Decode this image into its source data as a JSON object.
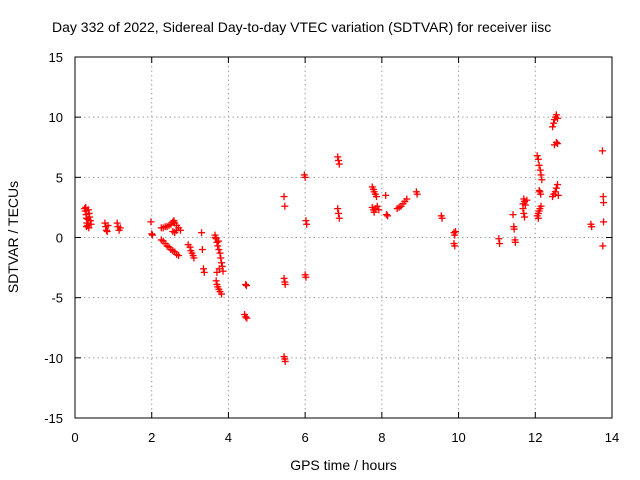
{
  "chart_data": {
    "type": "scatter",
    "title": "Day 332 of 2022, Sidereal Day-to-day VTEC variation (SDTVAR) for receiver iisc",
    "xlabel": "GPS time / hours",
    "ylabel": "SDTVAR / TECUs",
    "xlim": [
      0,
      14
    ],
    "ylim": [
      -15,
      15
    ],
    "xticks": [
      0,
      2,
      4,
      6,
      8,
      10,
      12,
      14
    ],
    "yticks": [
      15,
      10,
      5,
      0,
      -5,
      -10,
      -15
    ],
    "xtick_labels": [
      "0",
      "2",
      "4",
      "6",
      "8",
      "10",
      "12",
      "14"
    ],
    "ytick_labels": [
      "15",
      "10",
      "5",
      "0",
      "-5",
      "-10",
      "-15"
    ],
    "grid": true,
    "marker": "+",
    "color": "#ff0000",
    "series": [
      {
        "name": "SDTVAR",
        "points": [
          [
            0.25,
            2.4
          ],
          [
            0.27,
            2.2
          ],
          [
            0.29,
            1.9
          ],
          [
            0.3,
            1.6
          ],
          [
            0.31,
            1.2
          ],
          [
            0.33,
            1.0
          ],
          [
            0.35,
            2.3
          ],
          [
            0.37,
            2.0
          ],
          [
            0.38,
            1.7
          ],
          [
            0.4,
            1.4
          ],
          [
            0.42,
            1.1
          ],
          [
            0.3,
            0.9
          ],
          [
            0.28,
            2.5
          ],
          [
            0.34,
            1.5
          ],
          [
            0.36,
            0.8
          ],
          [
            0.78,
            1.2
          ],
          [
            0.8,
            0.9
          ],
          [
            0.82,
            0.6
          ],
          [
            0.84,
            0.5
          ],
          [
            0.86,
            1.0
          ],
          [
            1.1,
            1.2
          ],
          [
            1.12,
            0.9
          ],
          [
            1.15,
            0.6
          ],
          [
            1.18,
            0.8
          ],
          [
            1.98,
            1.3
          ],
          [
            2.0,
            0.3
          ],
          [
            2.02,
            0.2
          ],
          [
            2.25,
            0.8
          ],
          [
            2.3,
            0.8
          ],
          [
            2.35,
            0.9
          ],
          [
            2.4,
            0.9
          ],
          [
            2.45,
            1.0
          ],
          [
            2.5,
            1.1
          ],
          [
            2.55,
            1.3
          ],
          [
            2.58,
            1.4
          ],
          [
            2.6,
            1.2
          ],
          [
            2.65,
            1.0
          ],
          [
            2.7,
            0.8
          ],
          [
            2.75,
            0.6
          ],
          [
            2.25,
            -0.2
          ],
          [
            2.3,
            -0.3
          ],
          [
            2.35,
            -0.5
          ],
          [
            2.4,
            -0.7
          ],
          [
            2.45,
            -0.8
          ],
          [
            2.5,
            -1.0
          ],
          [
            2.55,
            -1.1
          ],
          [
            2.6,
            -1.2
          ],
          [
            2.65,
            -1.4
          ],
          [
            2.7,
            -1.5
          ],
          [
            2.55,
            0.5
          ],
          [
            2.6,
            0.4
          ],
          [
            2.65,
            0.6
          ],
          [
            2.95,
            -0.6
          ],
          [
            3.0,
            -0.8
          ],
          [
            3.02,
            -1.1
          ],
          [
            3.05,
            -1.3
          ],
          [
            3.08,
            -1.5
          ],
          [
            3.1,
            -1.7
          ],
          [
            3.3,
            0.4
          ],
          [
            3.32,
            -1.0
          ],
          [
            3.35,
            -2.6
          ],
          [
            3.37,
            -2.9
          ],
          [
            3.65,
            0.2
          ],
          [
            3.68,
            -0.1
          ],
          [
            3.7,
            -0.4
          ],
          [
            3.72,
            -0.7
          ],
          [
            3.75,
            -1.0
          ],
          [
            3.78,
            -1.3
          ],
          [
            3.8,
            -1.7
          ],
          [
            3.82,
            -2.1
          ],
          [
            3.84,
            -2.4
          ],
          [
            3.86,
            -2.8
          ],
          [
            3.7,
            -2.9
          ],
          [
            3.76,
            -2.6
          ],
          [
            3.68,
            -3.6
          ],
          [
            3.7,
            -3.9
          ],
          [
            3.72,
            -4.1
          ],
          [
            3.75,
            -4.3
          ],
          [
            3.78,
            -4.5
          ],
          [
            3.82,
            -4.7
          ],
          [
            3.66,
            0.0
          ],
          [
            3.74,
            -0.3
          ],
          [
            4.45,
            -3.9
          ],
          [
            4.47,
            -4.0
          ],
          [
            4.42,
            -6.4
          ],
          [
            4.45,
            -6.6
          ],
          [
            4.48,
            -6.7
          ],
          [
            5.45,
            3.4
          ],
          [
            5.47,
            2.6
          ],
          [
            5.45,
            -3.4
          ],
          [
            5.47,
            -3.7
          ],
          [
            5.48,
            -3.9
          ],
          [
            5.45,
            -9.9
          ],
          [
            5.47,
            -10.1
          ],
          [
            5.48,
            -10.3
          ],
          [
            5.98,
            5.2
          ],
          [
            6.0,
            5.0
          ],
          [
            6.02,
            1.4
          ],
          [
            6.04,
            1.1
          ],
          [
            6.0,
            -3.1
          ],
          [
            6.02,
            -3.3
          ],
          [
            6.85,
            6.7
          ],
          [
            6.87,
            6.4
          ],
          [
            6.89,
            6.1
          ],
          [
            6.85,
            2.4
          ],
          [
            6.87,
            2.0
          ],
          [
            6.89,
            1.6
          ],
          [
            7.75,
            4.2
          ],
          [
            7.78,
            4.0
          ],
          [
            7.8,
            3.8
          ],
          [
            7.83,
            3.6
          ],
          [
            7.86,
            3.4
          ],
          [
            7.75,
            2.5
          ],
          [
            7.78,
            2.3
          ],
          [
            7.8,
            2.1
          ],
          [
            7.84,
            2.4
          ],
          [
            7.88,
            2.6
          ],
          [
            7.92,
            2.3
          ],
          [
            8.1,
            3.5
          ],
          [
            8.12,
            1.9
          ],
          [
            8.15,
            1.8
          ],
          [
            8.4,
            2.4
          ],
          [
            8.45,
            2.5
          ],
          [
            8.5,
            2.6
          ],
          [
            8.55,
            2.8
          ],
          [
            8.6,
            3.0
          ],
          [
            8.65,
            3.2
          ],
          [
            8.9,
            3.8
          ],
          [
            8.92,
            3.6
          ],
          [
            9.55,
            1.8
          ],
          [
            9.57,
            1.6
          ],
          [
            9.88,
            0.4
          ],
          [
            9.9,
            0.2
          ],
          [
            9.92,
            0.5
          ],
          [
            9.88,
            -0.5
          ],
          [
            9.9,
            -0.7
          ],
          [
            11.05,
            -0.1
          ],
          [
            11.07,
            -0.5
          ],
          [
            11.42,
            1.9
          ],
          [
            11.44,
            0.9
          ],
          [
            11.45,
            0.7
          ],
          [
            11.47,
            -0.2
          ],
          [
            11.48,
            -0.4
          ],
          [
            11.7,
            3.2
          ],
          [
            11.72,
            3.0
          ],
          [
            11.74,
            2.7
          ],
          [
            11.68,
            2.4
          ],
          [
            11.7,
            2.0
          ],
          [
            11.72,
            1.7
          ],
          [
            11.78,
            3.1
          ],
          [
            11.68,
            2.8
          ],
          [
            12.05,
            6.8
          ],
          [
            12.08,
            6.5
          ],
          [
            12.1,
            6.0
          ],
          [
            12.13,
            5.6
          ],
          [
            12.15,
            5.2
          ],
          [
            12.17,
            4.8
          ],
          [
            12.12,
            3.8
          ],
          [
            12.14,
            3.6
          ],
          [
            12.1,
            3.9
          ],
          [
            12.05,
            1.8
          ],
          [
            12.08,
            2.0
          ],
          [
            12.1,
            2.2
          ],
          [
            12.12,
            2.4
          ],
          [
            12.15,
            2.6
          ],
          [
            12.08,
            1.6
          ],
          [
            12.45,
            9.2
          ],
          [
            12.48,
            9.5
          ],
          [
            12.5,
            9.8
          ],
          [
            12.53,
            10.0
          ],
          [
            12.55,
            10.2
          ],
          [
            12.58,
            9.9
          ],
          [
            12.5,
            7.7
          ],
          [
            12.55,
            7.9
          ],
          [
            12.58,
            7.8
          ],
          [
            12.45,
            3.4
          ],
          [
            12.48,
            3.6
          ],
          [
            12.52,
            3.8
          ],
          [
            12.55,
            4.1
          ],
          [
            12.58,
            4.4
          ],
          [
            12.6,
            3.5
          ],
          [
            13.45,
            1.1
          ],
          [
            13.47,
            0.9
          ],
          [
            13.75,
            7.2
          ],
          [
            13.77,
            3.4
          ],
          [
            13.78,
            2.9
          ],
          [
            13.78,
            1.3
          ],
          [
            13.76,
            -0.7
          ]
        ]
      }
    ]
  }
}
